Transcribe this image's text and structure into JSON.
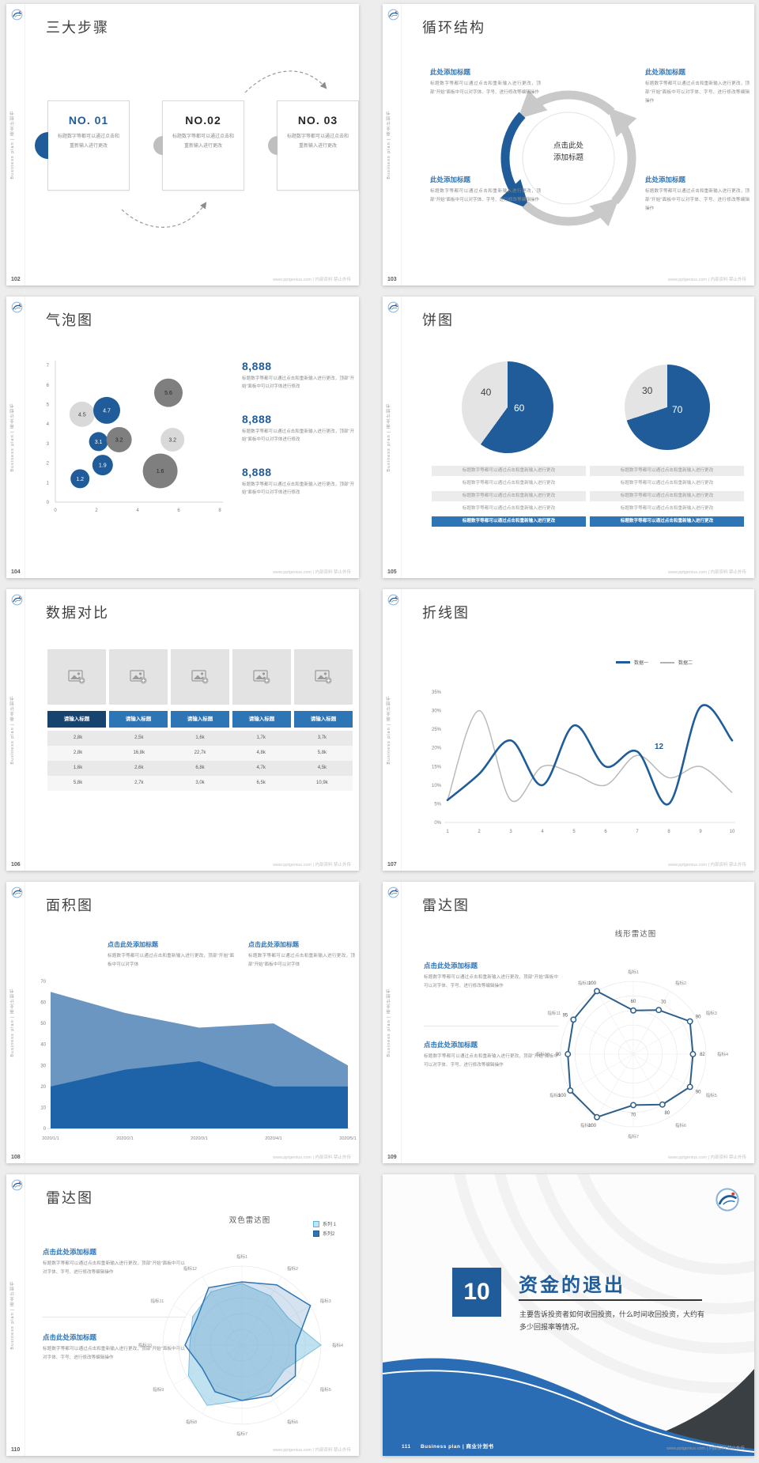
{
  "page": {
    "background": "#ededed",
    "accent_blue": "#1f5c99",
    "mid_blue": "#2e75b6"
  },
  "common": {
    "vertical_text": "Business plan | 商业计划书",
    "site_note": "www.pptgenius.com | 内部资料 禁止外传"
  },
  "s102": {
    "page_no": "102",
    "title": "三大步骤",
    "step_body": "标题数字等都可以通过点击和重新输入进行更改",
    "steps": [
      {
        "no": "NO. 01"
      },
      {
        "no": "NO.02"
      },
      {
        "no": "NO. 03"
      }
    ]
  },
  "s103": {
    "page_no": "103",
    "title": "循环结构",
    "center_line1": "点击此处",
    "center_line2": "添加标题",
    "block_heading": "此处添加标题",
    "block_body": "标题数字等都可以通过点击和重新输入进行更改，顶部“开始”面板中可以对字体、字号、进行修改等编辑操作"
  },
  "s104": {
    "page_no": "104",
    "title": "气泡图",
    "stat_value": "8,888",
    "stat_body": "标题数字等都可以通过点击和重新输入进行更改，顶部“开始”面板中可以对字体进行修改",
    "chart": {
      "type": "bubble",
      "x_ticks": [
        0,
        2,
        4,
        6,
        8
      ],
      "y_ticks": [
        0,
        1,
        2,
        3,
        4,
        5,
        6,
        7
      ],
      "bubbles": [
        {
          "x": 1.3,
          "y": 4.5,
          "r": 16,
          "label": "4.5",
          "color": "light"
        },
        {
          "x": 2.5,
          "y": 4.7,
          "r": 17,
          "label": "4.7",
          "color": "blue"
        },
        {
          "x": 5.5,
          "y": 5.6,
          "r": 18,
          "label": "5.6",
          "color": "dark"
        },
        {
          "x": 2.1,
          "y": 3.1,
          "r": 12,
          "label": "3.1",
          "color": "blue"
        },
        {
          "x": 3.1,
          "y": 3.2,
          "r": 16,
          "label": "3.2",
          "color": "dark"
        },
        {
          "x": 5.7,
          "y": 3.2,
          "r": 15,
          "label": "3.2",
          "color": "light"
        },
        {
          "x": 2.3,
          "y": 1.9,
          "r": 13,
          "label": "1.9",
          "color": "blue"
        },
        {
          "x": 1.2,
          "y": 1.2,
          "r": 12,
          "label": "1.2",
          "color": "blue"
        },
        {
          "x": 5.1,
          "y": 1.6,
          "r": 22,
          "label": "1.6",
          "color": "dark"
        }
      ]
    }
  },
  "s105": {
    "page_no": "105",
    "title": "饼图",
    "row_text": "标题数字等都可以通过点击和重新输入进行更改",
    "pies": [
      {
        "gray_value": "40",
        "blue_value": "60",
        "blue_pct": 60
      },
      {
        "gray_value": "30",
        "blue_value": "70",
        "blue_pct": 70
      }
    ]
  },
  "s106": {
    "page_no": "106",
    "title": "数据对比",
    "table": {
      "headers": [
        "请输入标题",
        "请输入标题",
        "请输入标题",
        "请输入标题",
        "请输入标题"
      ],
      "rows": [
        [
          "2,8k",
          "2,5k",
          "1,6k",
          "1,7k",
          "3,7k"
        ],
        [
          "2,8k",
          "16,8k",
          "22,7k",
          "4,8k",
          "5,8k"
        ],
        [
          "1,6k",
          "2,6k",
          "6,8k",
          "4,7k",
          "4,5k"
        ],
        [
          "5,8k",
          "2,7k",
          "3,0k",
          "6,5k",
          "10,9k"
        ]
      ]
    }
  },
  "s107": {
    "page_no": "107",
    "title": "折线图",
    "legend": [
      "数据一",
      "数据二"
    ],
    "annotation": "12",
    "chart": {
      "type": "line",
      "x_ticks": [
        1,
        2,
        3,
        4,
        5,
        6,
        7,
        8,
        9,
        10
      ],
      "y_ticks": [
        "0%",
        "5%",
        "10%",
        "15%",
        "20%",
        "25%",
        "30%",
        "35%"
      ],
      "series": [
        {
          "name": "数据一",
          "values": [
            6,
            13,
            22,
            10,
            26,
            15,
            19,
            5,
            31,
            22
          ]
        },
        {
          "name": "数据二",
          "values": [
            6,
            30,
            6,
            15,
            13,
            10,
            18,
            12,
            15,
            8
          ]
        }
      ]
    }
  },
  "s108": {
    "page_no": "108",
    "title": "面积图",
    "block_heading": "点击此处添加标题",
    "block_body": "标题数字等都可以通过点击和重新输入进行更改，顶部“开始”面板中可以对字体",
    "chart": {
      "type": "area",
      "x_ticks": [
        "2020/1/1",
        "2020/2/1",
        "2020/3/1",
        "2020/4/1",
        "2020/5/1"
      ],
      "y_ticks": [
        0,
        10,
        20,
        30,
        40,
        50,
        60,
        70
      ],
      "series": [
        {
          "name": "light",
          "values": [
            65,
            55,
            48,
            50,
            30
          ]
        },
        {
          "name": "dark",
          "values": [
            20,
            28,
            32,
            20,
            20
          ]
        }
      ]
    }
  },
  "s109": {
    "page_no": "109",
    "title": "雷达图",
    "chart_title": "线形雷达图",
    "block_heading": "点击此处添加标题",
    "block_body": "标题数字等都可以通过点击和重新输入进行更改，顶部“开始”面板中可以对字体、字号、进行修改等编辑操作",
    "chart": {
      "type": "radar",
      "axes": [
        "指标1",
        "指标2",
        "指标3",
        "指标4",
        "指标5",
        "指标6",
        "指标7",
        "指标8",
        "指标9",
        "指标10",
        "指标11",
        "指标12"
      ],
      "values": [
        60,
        70,
        90,
        82,
        90,
        80,
        70,
        100,
        100,
        90,
        95,
        100
      ],
      "max": 100
    }
  },
  "s110": {
    "page_no": "110",
    "title": "雷达图",
    "chart_title": "双色雷达图",
    "legend": [
      "系列 1",
      "系列2"
    ],
    "block_heading": "点击此处添加标题",
    "block_body": "标题数字等都可以通过点击和重新输入进行更改，顶部“开始”面板中可以对字体、字号、进行修改等编辑操作",
    "chart": {
      "type": "radar",
      "axes": [
        "指标1",
        "指标2",
        "指标3",
        "指标4",
        "指标5",
        "指标6",
        "指标7",
        "指标8",
        "指标9",
        "指标10",
        "指标11",
        "指标12"
      ],
      "series": [
        {
          "name": "系列 1",
          "values": [
            78,
            72,
            68,
            100,
            62,
            68,
            70,
            88,
            78,
            66,
            72,
            78
          ]
        },
        {
          "name": "系列2",
          "values": [
            80,
            88,
            100,
            68,
            78,
            74,
            70,
            68,
            58,
            72,
            66,
            84
          ]
        }
      ],
      "max": 100
    }
  },
  "s111": {
    "page_no": "111",
    "section_no": "10",
    "title": "资金的退出",
    "body": "主要告诉投资者如何收回投资，什么时间收回投资，大约有多少回报率等情况。",
    "footer_label": "Business plan | 商业计划书"
  }
}
